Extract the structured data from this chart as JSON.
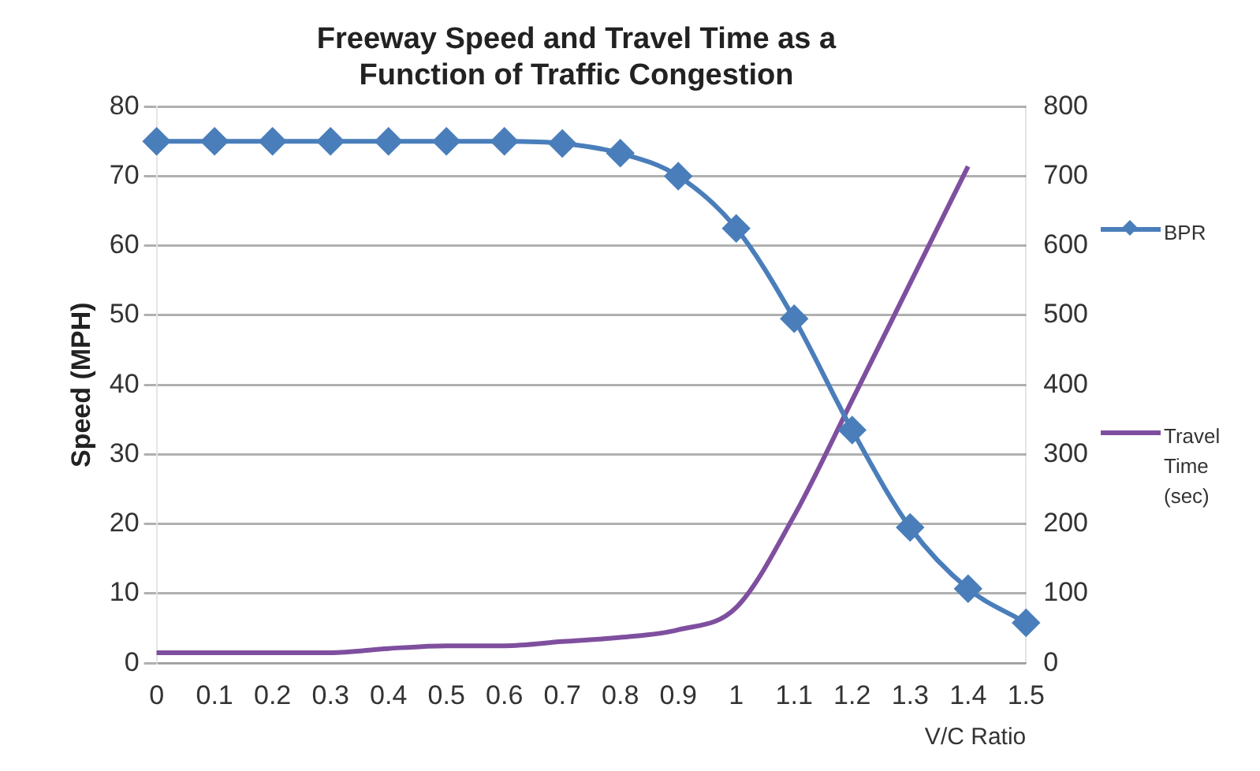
{
  "chart_data": {
    "type": "line",
    "title": "Freeway Speed and Travel Time as a Function of Traffic Congestion",
    "xlabel": "V/C Ratio",
    "ylabel": "Speed (MPH)",
    "categories": [
      "0",
      "0.1",
      "0.2",
      "0.3",
      "0.4",
      "0.5",
      "0.6",
      "0.7",
      "0.8",
      "0.9",
      "1",
      "1.1",
      "1.2",
      "1.3",
      "1.4",
      "1.5"
    ],
    "series": [
      {
        "name": "BPR",
        "color": "#4a7ebb",
        "marker": "diamond",
        "values": [
          75,
          75,
          75,
          75,
          75,
          75,
          75,
          74.7,
          73.3,
          70,
          62.5,
          49.5,
          33.5,
          19.5,
          10.7,
          5.8
        ]
      },
      {
        "name": "Travel Time (sec)",
        "color": "#7f4f9f",
        "marker": "none",
        "axis": "y2",
        "values": [
          15,
          15,
          15,
          15,
          21,
          25,
          25,
          31,
          37,
          48,
          80,
          212,
          378,
          546,
          714,
          null
        ]
      }
    ],
    "ylim": [
      0,
      80
    ],
    "yticks": [
      0,
      10,
      20,
      30,
      40,
      50,
      60,
      70,
      80
    ],
    "y2lim": [
      0,
      800
    ],
    "y2ticks": [
      0,
      100,
      200,
      300,
      400,
      500,
      600,
      700,
      800
    ],
    "grid": "y",
    "legend": "right"
  }
}
